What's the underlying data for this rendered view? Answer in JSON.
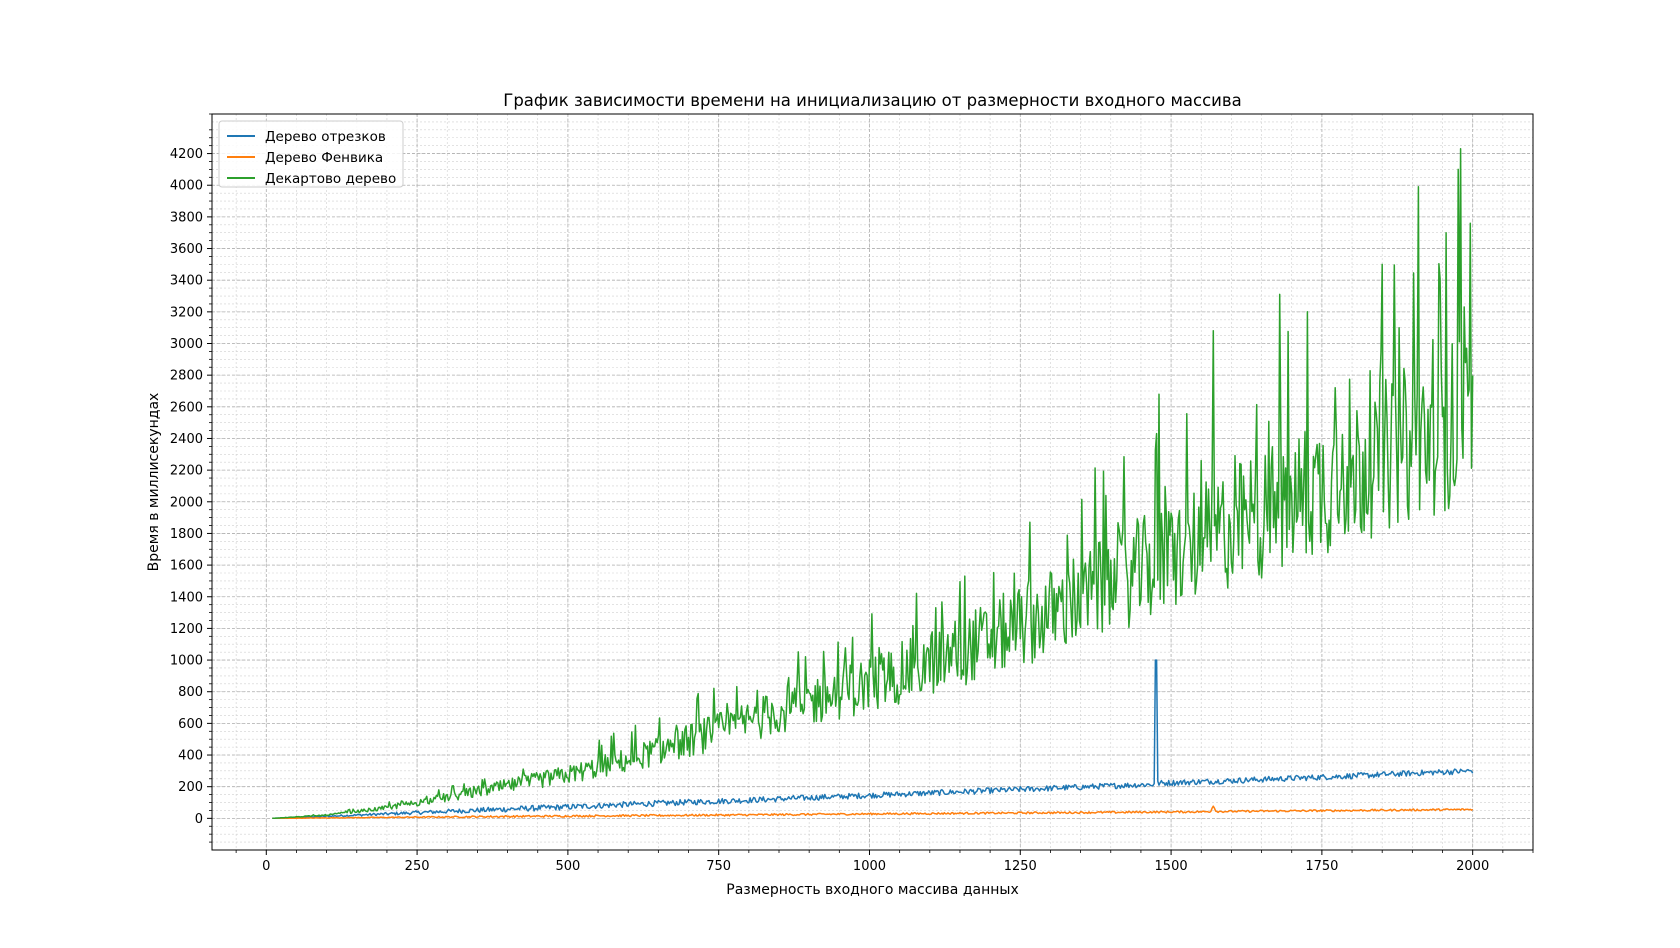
{
  "chart_data": {
    "type": "line",
    "title": "График зависимости времени на инициализацию от размерности входного массива",
    "xlabel": "Размерность входного массива данных",
    "ylabel": "Время в миллисекундах",
    "xlim": [
      -90,
      2100
    ],
    "ylim": [
      -200,
      4450
    ],
    "xticks": [
      "0",
      "250",
      "500",
      "750",
      "1000",
      "1250",
      "1500",
      "1750",
      "2000"
    ],
    "yticks": [
      "0",
      "200",
      "400",
      "600",
      "800",
      "1000",
      "1200",
      "1400",
      "1600",
      "1800",
      "2000",
      "2200",
      "2400",
      "2600",
      "2800",
      "3000",
      "3200",
      "3400",
      "3600",
      "3800",
      "4000",
      "4200"
    ],
    "grid": true,
    "minor_grid": true,
    "legend_position": "top-left",
    "series": [
      {
        "name": "Дерево отрезков",
        "color": "#1f77b4",
        "x": [
          10,
          100,
          200,
          300,
          400,
          500,
          600,
          700,
          800,
          900,
          1000,
          1100,
          1200,
          1300,
          1400,
          1470,
          1475,
          1480,
          1500,
          1600,
          1700,
          1800,
          1900,
          2000
        ],
        "y": [
          0,
          13,
          28,
          44,
          58,
          72,
          88,
          102,
          115,
          130,
          145,
          160,
          175,
          190,
          205,
          215,
          1000,
          222,
          225,
          238,
          253,
          268,
          285,
          300
        ],
        "noise": 30
      },
      {
        "name": "Дерево Фенвика",
        "color": "#ff7f0e",
        "x": [
          10,
          200,
          400,
          600,
          800,
          1000,
          1200,
          1400,
          1565,
          1570,
          1575,
          1600,
          1800,
          2000
        ],
        "y": [
          0,
          6,
          12,
          17,
          22,
          28,
          33,
          38,
          42,
          80,
          43,
          44,
          50,
          56
        ],
        "noise": 10
      },
      {
        "name": "Декартово дерево",
        "color": "#2ca02c",
        "x": [
          10,
          100,
          200,
          300,
          400,
          500,
          600,
          700,
          800,
          900,
          1000,
          1100,
          1200,
          1300,
          1400,
          1500,
          1600,
          1700,
          1800,
          1900,
          2000
        ],
        "y": [
          0,
          20,
          65,
          130,
          200,
          270,
          360,
          480,
          600,
          720,
          830,
          960,
          1110,
          1270,
          1450,
          1620,
          1800,
          1960,
          2150,
          2320,
          2500
        ],
        "noise_ratio": 0.22,
        "peaks": [
          [
            1480,
            2680
          ],
          [
            1570,
            3080
          ],
          [
            1680,
            3310
          ],
          [
            1725,
            3200
          ],
          [
            1850,
            3500
          ],
          [
            1910,
            3990
          ],
          [
            1955,
            3700
          ],
          [
            1975,
            4100
          ],
          [
            1980,
            4230
          ],
          [
            1995,
            3760
          ]
        ]
      }
    ]
  }
}
